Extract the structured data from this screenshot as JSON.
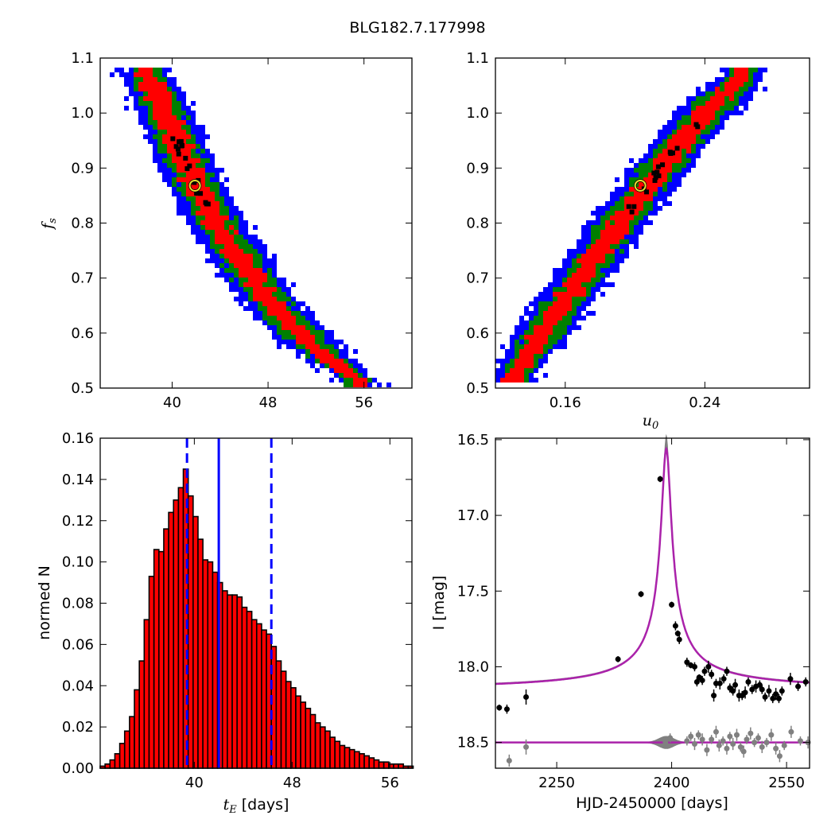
{
  "figure": {
    "title": "BLG182.7.177998"
  },
  "chart_data": [
    {
      "id": "tE-fs",
      "type": "heatmap",
      "title": "",
      "xlabel": "",
      "ylabel": "f_s",
      "xlim": [
        34,
        60
      ],
      "ylim": [
        0.5,
        1.1
      ],
      "xticks": [
        40,
        48,
        56
      ],
      "yticks": [
        0.5,
        0.6,
        0.7,
        0.8,
        0.9,
        1.0,
        1.1
      ],
      "levels": [
        {
          "name": "outer",
          "color": "#0000ff"
        },
        {
          "name": "middle",
          "color": "#007f00"
        },
        {
          "name": "inner",
          "color": "#ff0000"
        }
      ],
      "ridge": [
        [
          38.0,
          1.07
        ],
        [
          42.0,
          0.87
        ],
        [
          44.0,
          0.79
        ],
        [
          48.0,
          0.66
        ],
        [
          52.0,
          0.57
        ],
        [
          55.5,
          0.515
        ]
      ],
      "best_fit": {
        "x": 41.9,
        "y": 0.868
      }
    },
    {
      "id": "u0-fs",
      "type": "heatmap",
      "title": "",
      "xlabel": "u_0",
      "ylabel": "",
      "xlim": [
        0.12,
        0.3
      ],
      "ylim": [
        0.5,
        1.1
      ],
      "xticks": [
        0.16,
        0.24
      ],
      "yticks": [
        0.5,
        0.6,
        0.7,
        0.8,
        0.9,
        1.0,
        1.1
      ],
      "levels": [
        {
          "name": "outer",
          "color": "#0000ff"
        },
        {
          "name": "middle",
          "color": "#007f00"
        },
        {
          "name": "inner",
          "color": "#ff0000"
        }
      ],
      "ridge": [
        [
          0.13,
          0.52
        ],
        [
          0.16,
          0.66
        ],
        [
          0.2,
          0.84
        ],
        [
          0.24,
          1.0
        ],
        [
          0.262,
          1.07
        ]
      ],
      "best_fit": {
        "x": 0.203,
        "y": 0.868
      }
    },
    {
      "id": "tE-hist",
      "type": "bar",
      "title": "",
      "xlabel": "t_E [days]",
      "ylabel": "normed N",
      "xlim": [
        32.3,
        57.8
      ],
      "ylim": [
        0,
        0.16
      ],
      "xticks": [
        40,
        48,
        56
      ],
      "yticks": [
        0.0,
        0.02,
        0.04,
        0.06,
        0.08,
        0.1,
        0.12,
        0.14,
        0.16
      ],
      "bin_start": 32.3,
      "bin_width": 0.4,
      "values": [
        0.001,
        0.002,
        0.004,
        0.007,
        0.012,
        0.018,
        0.025,
        0.038,
        0.052,
        0.072,
        0.093,
        0.106,
        0.105,
        0.116,
        0.124,
        0.13,
        0.136,
        0.145,
        0.132,
        0.122,
        0.111,
        0.101,
        0.1,
        0.095,
        0.09,
        0.086,
        0.084,
        0.084,
        0.083,
        0.078,
        0.076,
        0.072,
        0.07,
        0.067,
        0.065,
        0.059,
        0.052,
        0.047,
        0.042,
        0.039,
        0.035,
        0.032,
        0.029,
        0.026,
        0.022,
        0.02,
        0.018,
        0.015,
        0.013,
        0.011,
        0.01,
        0.009,
        0.008,
        0.007,
        0.006,
        0.005,
        0.004,
        0.003,
        0.003,
        0.002,
        0.002,
        0.002,
        0.001,
        0.001
      ],
      "bar_color": "#ff0000",
      "median": 42.0,
      "bounds": [
        39.4,
        46.3
      ]
    },
    {
      "id": "lightcurve",
      "type": "scatter",
      "title": "",
      "xlabel": "HJD-2450000 [days]",
      "ylabel": "I [mag]",
      "xlim": [
        2170,
        2580
      ],
      "ylim": [
        18.67,
        16.49
      ],
      "y_inverted": true,
      "xticks": [
        2250,
        2400,
        2550
      ],
      "yticks": [
        16.5,
        17.0,
        17.5,
        18.0,
        18.5
      ],
      "model": {
        "t0": 2393,
        "baseline": 18.16,
        "peak": 16.56,
        "width": 6.5,
        "color": "#aa22aa"
      },
      "data": [
        [
          2175,
          18.27,
          0.02
        ],
        [
          2185,
          18.28,
          0.03
        ],
        [
          2210,
          18.2,
          0.05
        ],
        [
          2330,
          17.95,
          0.02
        ],
        [
          2360,
          17.52,
          0.02
        ],
        [
          2385,
          16.76,
          0.02
        ],
        [
          2400,
          17.59,
          0.02
        ],
        [
          2405,
          17.73,
          0.03
        ],
        [
          2408,
          17.78,
          0.02
        ],
        [
          2410,
          17.82,
          0.03
        ],
        [
          2420,
          17.97,
          0.03
        ],
        [
          2425,
          17.99,
          0.02
        ],
        [
          2430,
          18.0,
          0.03
        ],
        [
          2433,
          18.1,
          0.03
        ],
        [
          2436,
          18.07,
          0.02
        ],
        [
          2440,
          18.09,
          0.03
        ],
        [
          2443,
          18.03,
          0.03
        ],
        [
          2448,
          18.0,
          0.04
        ],
        [
          2452,
          18.05,
          0.03
        ],
        [
          2455,
          18.19,
          0.04
        ],
        [
          2458,
          18.11,
          0.03
        ],
        [
          2463,
          18.11,
          0.04
        ],
        [
          2468,
          18.08,
          0.03
        ],
        [
          2472,
          18.03,
          0.03
        ],
        [
          2476,
          18.14,
          0.03
        ],
        [
          2480,
          18.16,
          0.03
        ],
        [
          2483,
          18.12,
          0.04
        ],
        [
          2488,
          18.19,
          0.04
        ],
        [
          2492,
          18.19,
          0.03
        ],
        [
          2496,
          18.17,
          0.04
        ],
        [
          2500,
          18.1,
          0.03
        ],
        [
          2505,
          18.15,
          0.03
        ],
        [
          2510,
          18.13,
          0.04
        ],
        [
          2515,
          18.12,
          0.03
        ],
        [
          2518,
          18.15,
          0.03
        ],
        [
          2522,
          18.2,
          0.03
        ],
        [
          2527,
          18.16,
          0.04
        ],
        [
          2532,
          18.21,
          0.03
        ],
        [
          2536,
          18.18,
          0.04
        ],
        [
          2540,
          18.21,
          0.03
        ],
        [
          2544,
          18.16,
          0.03
        ],
        [
          2555,
          18.08,
          0.04
        ],
        [
          2565,
          18.13,
          0.03
        ],
        [
          2575,
          18.1,
          0.03
        ]
      ],
      "residuals": {
        "baseline": 18.5,
        "color": "#808080",
        "points": [
          [
            2188,
            18.62,
            0.04
          ],
          [
            2210,
            18.53,
            0.05
          ],
          [
            2392,
            18.5,
            0.02
          ],
          [
            2398,
            18.47,
            0.03
          ],
          [
            2420,
            18.49,
            0.03
          ],
          [
            2425,
            18.46,
            0.03
          ],
          [
            2430,
            18.51,
            0.04
          ],
          [
            2435,
            18.45,
            0.03
          ],
          [
            2440,
            18.48,
            0.04
          ],
          [
            2446,
            18.55,
            0.04
          ],
          [
            2452,
            18.48,
            0.03
          ],
          [
            2458,
            18.43,
            0.04
          ],
          [
            2462,
            18.52,
            0.04
          ],
          [
            2467,
            18.49,
            0.03
          ],
          [
            2472,
            18.54,
            0.04
          ],
          [
            2476,
            18.46,
            0.03
          ],
          [
            2480,
            18.51,
            0.04
          ],
          [
            2485,
            18.45,
            0.04
          ],
          [
            2490,
            18.53,
            0.03
          ],
          [
            2494,
            18.56,
            0.04
          ],
          [
            2498,
            18.48,
            0.03
          ],
          [
            2503,
            18.44,
            0.04
          ],
          [
            2508,
            18.5,
            0.03
          ],
          [
            2513,
            18.47,
            0.03
          ],
          [
            2518,
            18.53,
            0.04
          ],
          [
            2524,
            18.5,
            0.03
          ],
          [
            2530,
            18.45,
            0.04
          ],
          [
            2536,
            18.54,
            0.04
          ],
          [
            2541,
            18.59,
            0.04
          ],
          [
            2547,
            18.52,
            0.03
          ],
          [
            2556,
            18.43,
            0.04
          ],
          [
            2568,
            18.49,
            0.03
          ],
          [
            2578,
            18.5,
            0.04
          ]
        ]
      }
    }
  ]
}
